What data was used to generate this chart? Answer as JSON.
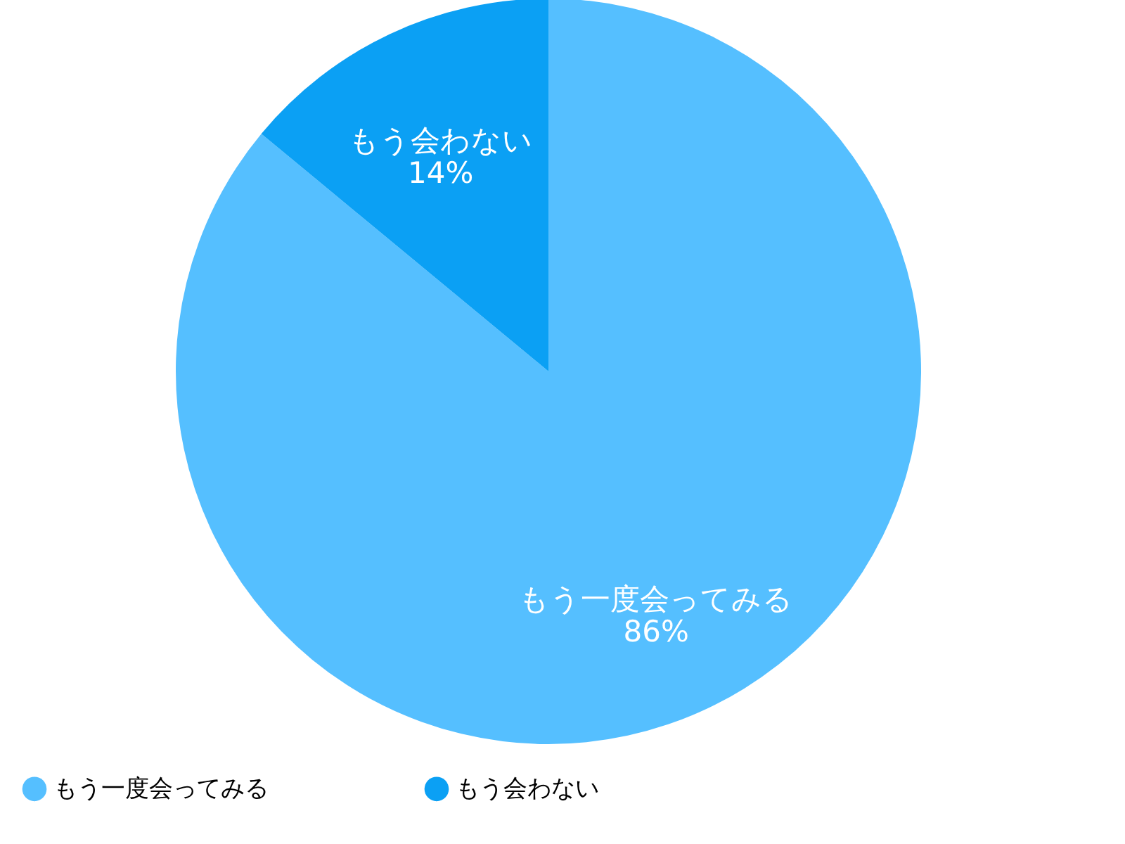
{
  "chart_data": {
    "type": "pie",
    "categories": [
      "もう一度会ってみる",
      "もう会わない"
    ],
    "values": [
      86,
      14
    ],
    "colors": [
      "#55bfff",
      "#0ba0f4"
    ],
    "value_labels": [
      "86%",
      "14%"
    ],
    "legend": "bottom"
  }
}
